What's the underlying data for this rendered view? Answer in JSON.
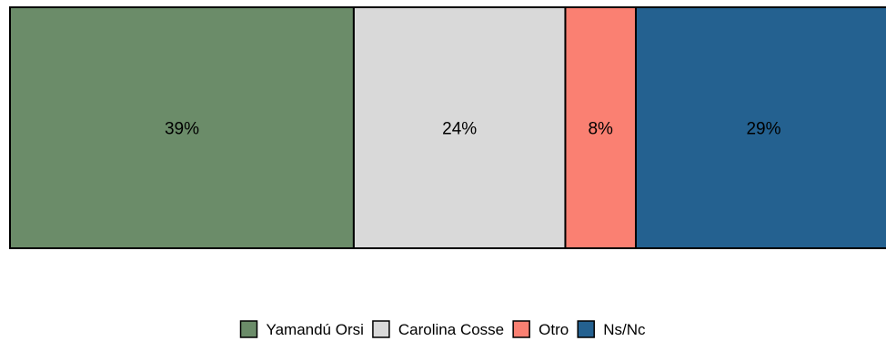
{
  "chart_data": {
    "type": "bar",
    "orientation": "horizontal-stacked",
    "title": "",
    "xlabel": "",
    "ylabel": "",
    "categories": [
      "Yamandú Orsi",
      "Carolina Cosse",
      "Otro",
      "Ns/Nc"
    ],
    "values": [
      39,
      24,
      8,
      29
    ],
    "labels": [
      "39%",
      "24%",
      "8%",
      "29%"
    ],
    "colors": [
      "#6b8c69",
      "#d9d9d9",
      "#fa8072",
      "#246190"
    ],
    "xlim": [
      0,
      100
    ],
    "grid": false,
    "legend": "bottom-center"
  }
}
